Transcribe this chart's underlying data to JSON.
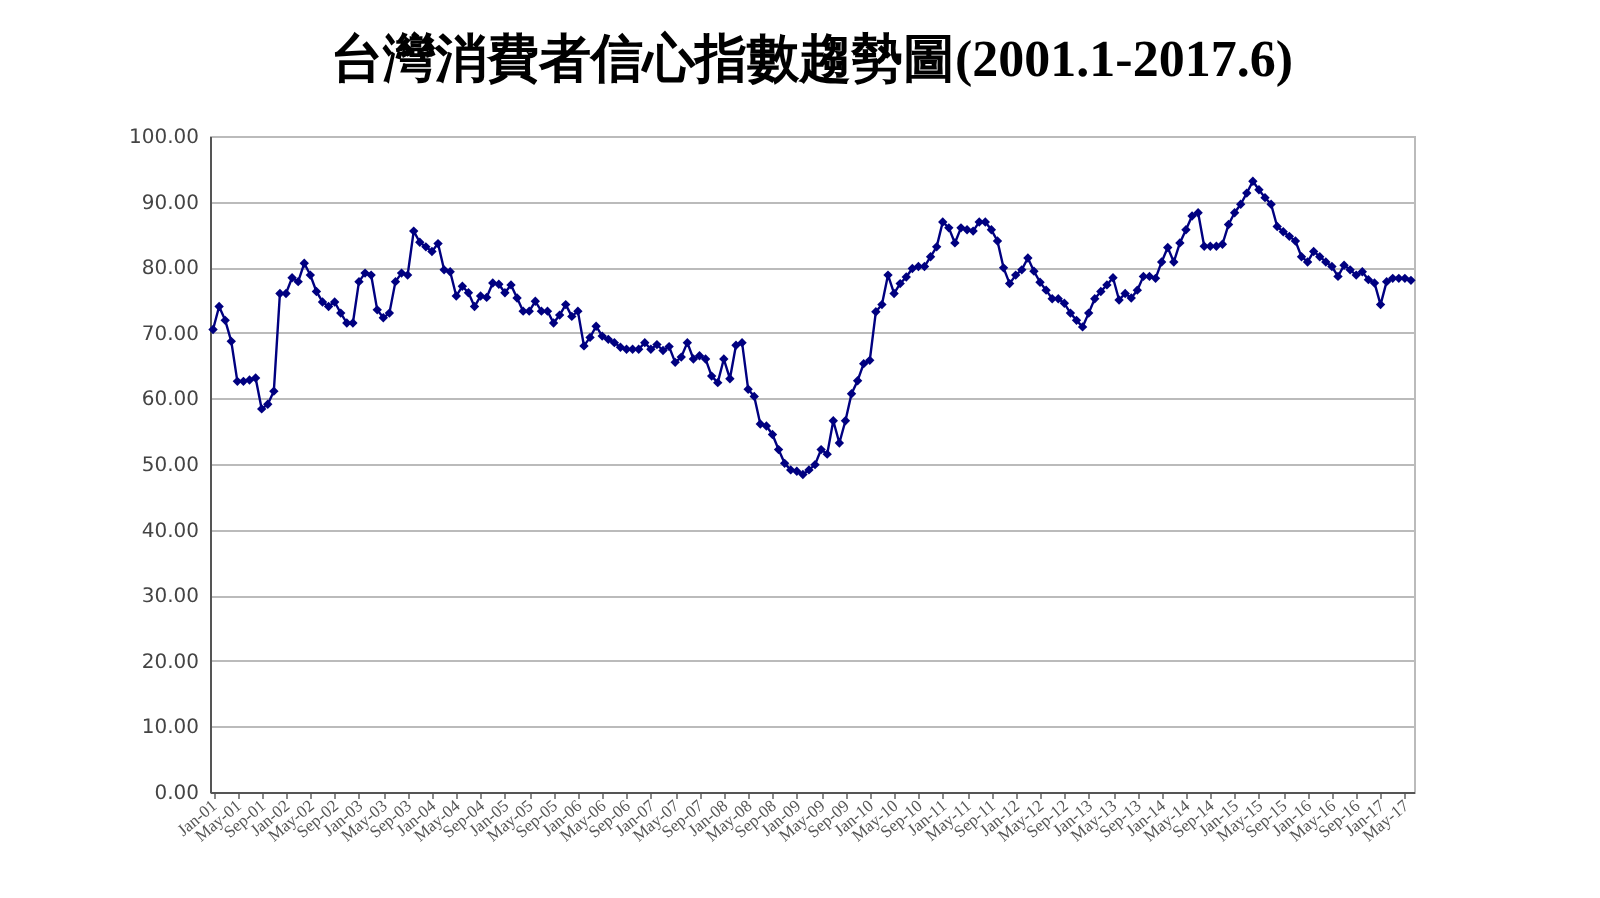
{
  "chart_data": {
    "type": "line",
    "title": "台灣消費者信心指數趨勢圖(2001.1-2017.6)",
    "categories": [
      "Jan-01",
      null,
      null,
      null,
      "May-01",
      null,
      null,
      null,
      "Sep-01",
      null,
      null,
      null,
      "Jan-02",
      null,
      null,
      null,
      "May-02",
      null,
      null,
      null,
      "Sep-02",
      null,
      null,
      null,
      "Jan-03",
      null,
      null,
      null,
      "May-03",
      null,
      null,
      null,
      "Sep-03",
      null,
      null,
      null,
      "Jan-04",
      null,
      null,
      null,
      "May-04",
      null,
      null,
      null,
      "Sep-04",
      null,
      null,
      null,
      "Jan-05",
      null,
      null,
      null,
      "May-05",
      null,
      null,
      null,
      "Sep-05",
      null,
      null,
      null,
      "Jan-06",
      null,
      null,
      null,
      "May-06",
      null,
      null,
      null,
      "Sep-06",
      null,
      null,
      null,
      "Jan-07",
      null,
      null,
      null,
      "May-07",
      null,
      null,
      null,
      "Sep-07",
      null,
      null,
      null,
      "Jan-08",
      null,
      null,
      null,
      "May-08",
      null,
      null,
      null,
      "Sep-08",
      null,
      null,
      null,
      "Jan-09",
      null,
      null,
      null,
      "May-09",
      null,
      null,
      null,
      "Sep-09",
      null,
      null,
      null,
      "Jan-10",
      null,
      null,
      null,
      "May-10",
      null,
      null,
      null,
      "Sep-10",
      null,
      null,
      null,
      "Jan-11",
      null,
      null,
      null,
      "May-11",
      null,
      null,
      null,
      "Sep-11",
      null,
      null,
      null,
      "Jan-12",
      null,
      null,
      null,
      "May-12",
      null,
      null,
      null,
      "Sep-12",
      null,
      null,
      null,
      "Jan-13",
      null,
      null,
      null,
      "May-13",
      null,
      null,
      null,
      "Sep-13",
      null,
      null,
      null,
      "Jan-14",
      null,
      null,
      null,
      "May-14",
      null,
      null,
      null,
      "Sep-14",
      null,
      null,
      null,
      "Jan-15",
      null,
      null,
      null,
      "May-15",
      null,
      null,
      null,
      "Sep-15",
      null,
      null,
      null,
      "Jan-16",
      null,
      null,
      null,
      "May-16",
      null,
      null,
      null,
      "Sep-16",
      null,
      null,
      null,
      "Jan-17",
      null,
      null,
      null,
      "May-17",
      null
    ],
    "series": [
      {
        "color": "#000080",
        "values": [
          70.5,
          74.0,
          71.9,
          68.7,
          62.6,
          62.6,
          62.8,
          63.1,
          58.4,
          59.1,
          61.1,
          76.0,
          76.0,
          78.4,
          77.8,
          80.6,
          78.8,
          76.3,
          74.7,
          74.0,
          74.7,
          73.0,
          71.5,
          71.5,
          77.8,
          79.1,
          78.8,
          73.5,
          72.3,
          73.0,
          77.8,
          79.1,
          78.8,
          85.5,
          83.8,
          83.1,
          82.4,
          83.6,
          79.6,
          79.3,
          75.6,
          77.1,
          76.1,
          74.0,
          75.6,
          75.4,
          77.6,
          77.4,
          76.1,
          77.3,
          75.3,
          73.3,
          73.3,
          74.8,
          73.3,
          73.3,
          71.5,
          72.7,
          74.3,
          72.5,
          73.3,
          68.0,
          69.3,
          71.0,
          69.5,
          69.0,
          68.5,
          67.8,
          67.5,
          67.5,
          67.5,
          68.5,
          67.5,
          68.2,
          67.3,
          67.9,
          65.5,
          66.3,
          68.5,
          66.0,
          66.5,
          66.0,
          63.4,
          62.4,
          66.0,
          63.0,
          68.1,
          68.5,
          61.4,
          60.3,
          56.1,
          55.8,
          54.5,
          52.2,
          50.1,
          49.1,
          48.9,
          48.4,
          49.1,
          49.9,
          52.2,
          51.5,
          56.6,
          53.2,
          56.6,
          60.7,
          62.7,
          65.3,
          65.8,
          73.2,
          74.3,
          78.8,
          76.0,
          77.5,
          78.5,
          79.8,
          80.1,
          80.1,
          81.6,
          83.1,
          86.9,
          86.0,
          83.7,
          86.0,
          85.7,
          85.5,
          86.9,
          86.9,
          85.7,
          84.0,
          79.9,
          77.5,
          78.8,
          79.6,
          81.4,
          79.4,
          77.7,
          76.5,
          75.2,
          75.2,
          74.5,
          73.0,
          71.9,
          70.9,
          73.0,
          75.2,
          76.3,
          77.3,
          78.4,
          75.0,
          76.0,
          75.3,
          76.5,
          78.6,
          78.6,
          78.3,
          80.8,
          83.0,
          80.8,
          83.7,
          85.7,
          87.8,
          88.3,
          83.2,
          83.2,
          83.2,
          83.5,
          86.5,
          88.3,
          89.6,
          91.3,
          93.1,
          91.8,
          90.6,
          89.6,
          86.2,
          85.4,
          84.7,
          84.0,
          81.6,
          80.8,
          82.4,
          81.6,
          80.8,
          80.1,
          78.6,
          80.3,
          79.6,
          78.8,
          79.3,
          78.1,
          77.6,
          74.3,
          77.8,
          78.3,
          78.3,
          78.3,
          78.0
        ]
      }
    ],
    "ylim": [
      0,
      100
    ],
    "yticks": [
      {
        "value": 0,
        "label": "0.00"
      },
      {
        "value": 10,
        "label": "10.00"
      },
      {
        "value": 20,
        "label": "20.00"
      },
      {
        "value": 30,
        "label": "30.00"
      },
      {
        "value": 40,
        "label": "40.00"
      },
      {
        "value": 50,
        "label": "50.00"
      },
      {
        "value": 60,
        "label": "60.00"
      },
      {
        "value": 70,
        "label": "70.00"
      },
      {
        "value": 80,
        "label": "80.00"
      },
      {
        "value": 90,
        "label": "90.00"
      },
      {
        "value": 100,
        "label": "100.00"
      }
    ],
    "grid": "y",
    "marker": "diamond",
    "line_style": "solid"
  }
}
